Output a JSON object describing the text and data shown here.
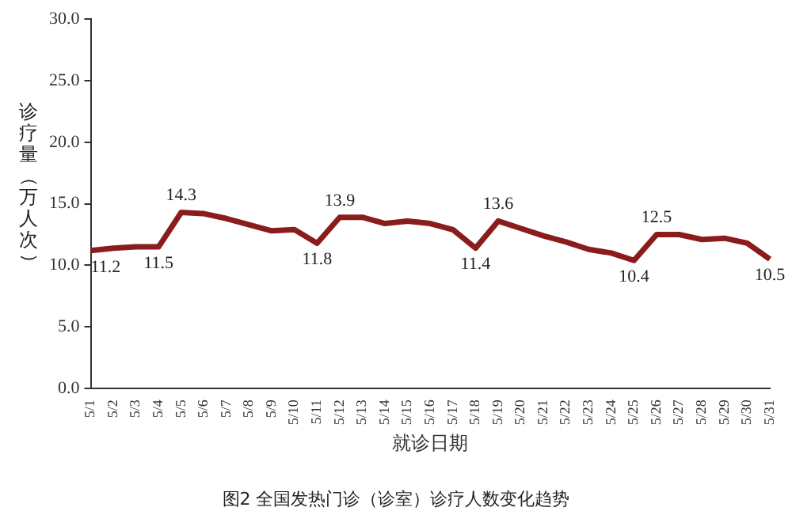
{
  "chart_data": {
    "type": "line",
    "xlabel": "就诊日期",
    "ylabel": "诊疗量（万人次）",
    "annotations": [
      "图2 全国发热门诊（诊室）诊疗人数变化趋势"
    ],
    "categories": [
      "5/1",
      "5/2",
      "5/3",
      "5/4",
      "5/5",
      "5/6",
      "5/7",
      "5/8",
      "5/9",
      "5/10",
      "5/11",
      "5/12",
      "5/13",
      "5/14",
      "5/15",
      "5/16",
      "5/17",
      "5/18",
      "5/19",
      "5/20",
      "5/21",
      "5/22",
      "5/23",
      "5/24",
      "5/25",
      "5/26",
      "5/27",
      "5/28",
      "5/29",
      "5/30",
      "5/31"
    ],
    "series": [
      {
        "color": "#8b1c1c",
        "values": [
          11.2,
          11.4,
          11.5,
          11.5,
          14.3,
          14.2,
          13.8,
          13.3,
          12.8,
          12.9,
          11.8,
          13.9,
          13.9,
          13.4,
          13.6,
          13.4,
          12.9,
          11.4,
          13.6,
          13.0,
          12.4,
          11.9,
          11.3,
          11.0,
          10.4,
          12.5,
          12.5,
          12.1,
          12.2,
          11.8,
          10.5
        ],
        "value_labels": [
          "11.2",
          null,
          null,
          "11.5",
          "14.3",
          null,
          null,
          null,
          null,
          null,
          "11.8",
          "13.9",
          null,
          null,
          null,
          null,
          null,
          "11.4",
          "13.6",
          null,
          null,
          null,
          null,
          null,
          "10.4",
          "12.5",
          null,
          null,
          null,
          null,
          "10.5"
        ]
      }
    ],
    "ylim": [
      0,
      30
    ],
    "yticks": [
      {
        "value": 0,
        "label": "0.0"
      },
      {
        "value": 5,
        "label": "5.0"
      },
      {
        "value": 10,
        "label": "10.0"
      },
      {
        "value": 15,
        "label": "15.0"
      },
      {
        "value": 20,
        "label": "20.0"
      },
      {
        "value": 25,
        "label": "25.0"
      },
      {
        "value": 30,
        "label": "30.0"
      }
    ],
    "grid": false,
    "legend": false,
    "marker": "none",
    "line_style": "solid"
  }
}
